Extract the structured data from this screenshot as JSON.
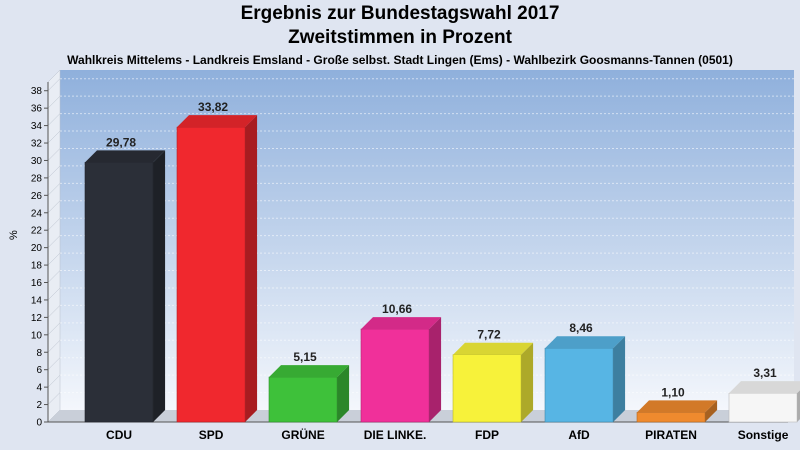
{
  "chart_data": {
    "type": "bar",
    "title": "Ergebnis zur Bundestagswahl 2017",
    "title_line2": "Zweitstimmen in Prozent",
    "subtitle": "Wahlkreis Mittelems - Landkreis Emsland - Große selbst. Stadt Lingen (Ems) - Wahlbezirk Goosmanns-Tannen (0501)",
    "ylabel": "%",
    "xlabel": "",
    "ylim": [
      0,
      39
    ],
    "y_ticks": [
      0,
      2,
      4,
      6,
      8,
      10,
      12,
      14,
      16,
      18,
      20,
      22,
      24,
      26,
      28,
      30,
      32,
      34,
      36,
      38
    ],
    "grid": true,
    "categories": [
      "CDU",
      "SPD",
      "GRÜNE",
      "DIE LINKE.",
      "FDP",
      "AfD",
      "PIRATEN",
      "Sonstige"
    ],
    "values": [
      29.78,
      33.82,
      5.15,
      10.66,
      7.72,
      8.46,
      1.1,
      3.31
    ],
    "value_labels": [
      "29,78",
      "33,82",
      "5,15",
      "10,66",
      "7,72",
      "8,46",
      "1,10",
      "3,31"
    ],
    "colors": [
      "#2b2f38",
      "#f0282e",
      "#3ec13a",
      "#f0309a",
      "#f7f23a",
      "#57b5e4",
      "#ef8a2e",
      "#f6f6f6"
    ]
  }
}
